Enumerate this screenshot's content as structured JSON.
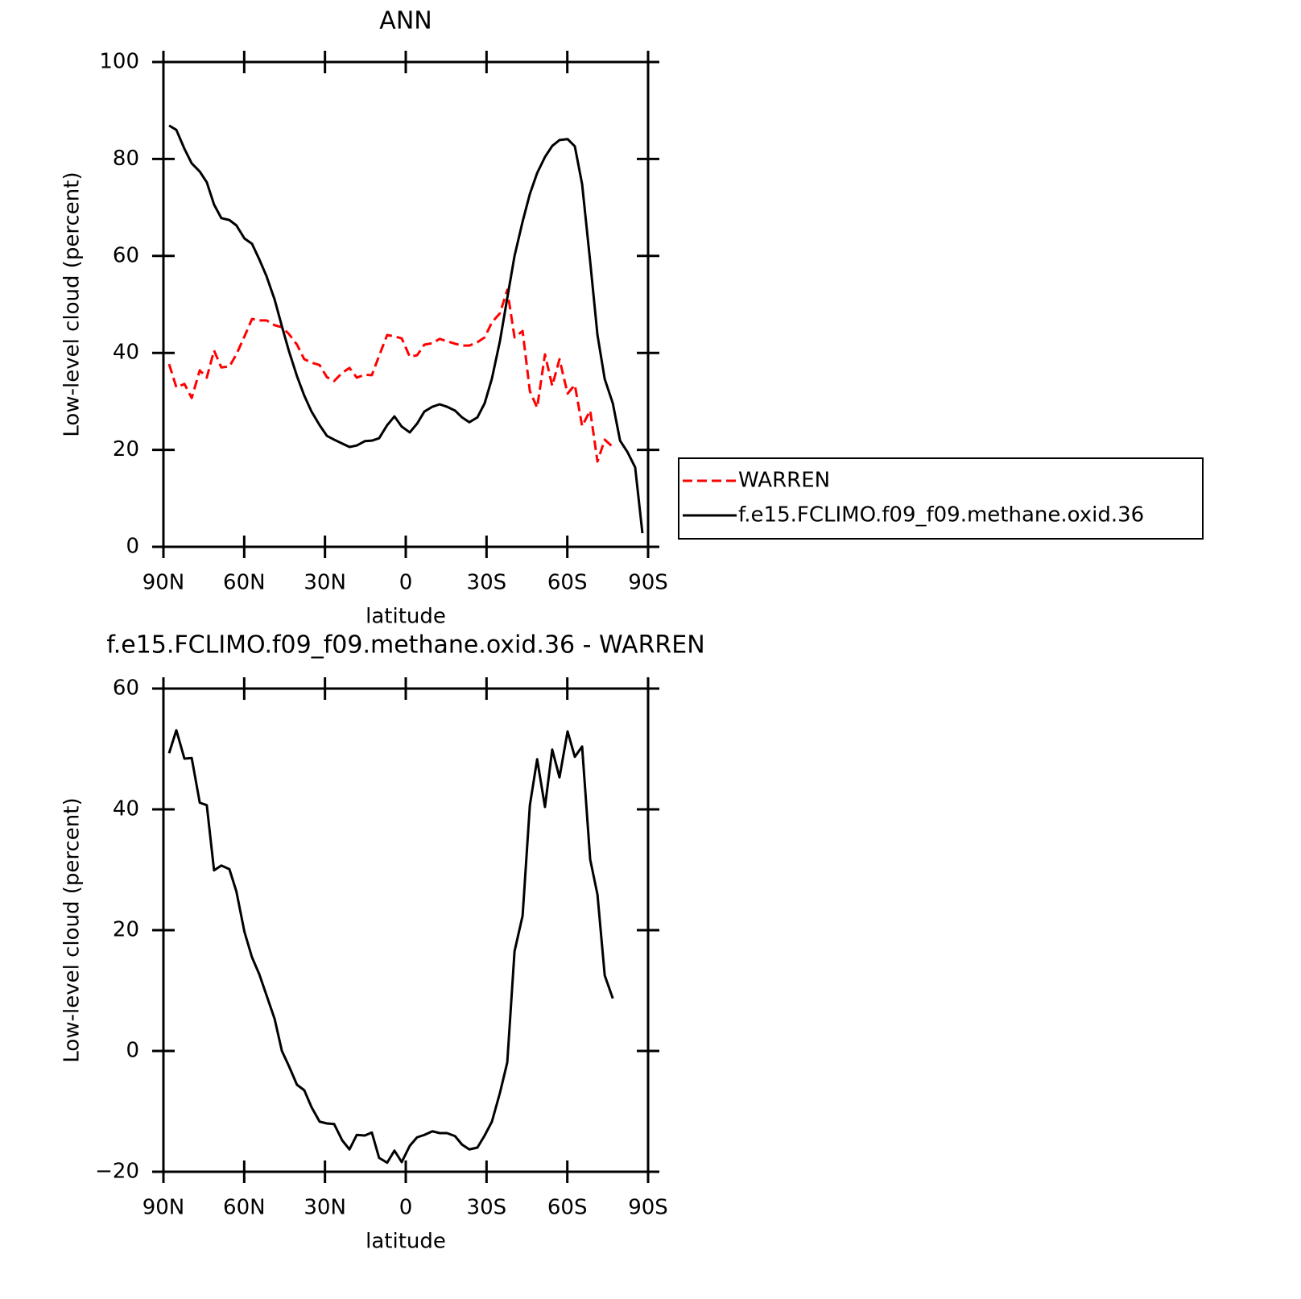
{
  "chart_data": [
    {
      "type": "line",
      "title": "ANN",
      "xlabel": "latitude",
      "ylabel": "Low-level cloud (percent)",
      "x": [
        87.9,
        85.2,
        82.2,
        79.5,
        76.5,
        73.9,
        71.2,
        68.5,
        65.5,
        62.9,
        59.9,
        57.1,
        54.4,
        51.7,
        48.7,
        46.0,
        43.4,
        40.4,
        37.7,
        35.0,
        32.0,
        29.3,
        26.6,
        23.6,
        20.9,
        18.2,
        15.2,
        12.6,
        9.9,
        6.9,
        4.2,
        1.5,
        -1.5,
        -4.2,
        -6.9,
        -9.9,
        -12.6,
        -15.3,
        -18.3,
        -20.9,
        -23.6,
        -26.6,
        -29.3,
        -32.0,
        -35.0,
        -37.7,
        -40.4,
        -43.4,
        -46.1,
        -48.8,
        -51.7,
        -54.4,
        -57.1,
        -60.1,
        -62.8,
        -65.5,
        -68.5,
        -71.2,
        -73.9,
        -76.9,
        -79.6,
        -82.3,
        -85.2,
        -87.9
      ],
      "xlim": [
        90,
        -90
      ],
      "xticks": [
        {
          "value": 90,
          "label": "90N"
        },
        {
          "value": 60,
          "label": "60N"
        },
        {
          "value": 30,
          "label": "30N"
        },
        0,
        {
          "value": -30,
          "label": "30S"
        },
        {
          "value": -60,
          "label": "60S"
        },
        {
          "value": -90,
          "label": "90S"
        }
      ],
      "ylim": [
        0,
        100
      ],
      "yticks": [
        0,
        20,
        40,
        60,
        80,
        100
      ],
      "legend": "right",
      "series": [
        {
          "name": "WARREN",
          "color": "#ff0000",
          "linestyle": "dashed",
          "values": [
            37.7,
            32.9,
            33.6,
            30.7,
            36.4,
            34.9,
            40.5,
            37.0,
            37.2,
            39.7,
            43.4,
            47.0,
            46.7,
            46.7,
            45.7,
            45.3,
            43.9,
            41.7,
            38.7,
            38.0,
            37.5,
            35.0,
            34.2,
            35.9,
            36.9,
            34.9,
            35.5,
            35.4,
            39.4,
            43.7,
            43.4,
            43.0,
            39.2,
            39.5,
            41.7,
            42.0,
            42.9,
            42.4,
            41.9,
            41.5,
            41.5,
            42.2,
            43.2,
            46.3,
            48.2,
            53.0,
            43.2,
            44.5,
            32.1,
            28.7,
            39.7,
            33.2,
            38.7,
            31.6,
            33.4,
            24.9,
            28.1,
            17.6,
            22.1,
            20.6,
            null,
            null,
            null,
            null
          ]
        },
        {
          "name": "f.e15.FCLIMO.f09_f09.methane.oxid.36",
          "color": "#000000",
          "linestyle": "solid",
          "values": [
            86.9,
            86.0,
            82.1,
            79.1,
            77.4,
            75.2,
            70.6,
            67.8,
            67.4,
            66.3,
            63.6,
            62.5,
            59.3,
            55.8,
            51.0,
            45.5,
            40.4,
            35.2,
            31.2,
            27.9,
            25.1,
            22.9,
            22.1,
            21.3,
            20.6,
            20.9,
            21.8,
            21.9,
            22.4,
            25.1,
            26.9,
            24.8,
            23.6,
            25.4,
            27.9,
            28.9,
            29.4,
            28.9,
            28.1,
            26.7,
            25.7,
            26.7,
            29.6,
            34.7,
            42.5,
            51.3,
            60.0,
            67.1,
            72.8,
            77.1,
            80.4,
            82.7,
            83.9,
            84.1,
            82.6,
            74.8,
            58.8,
            43.7,
            34.6,
            29.6,
            21.9,
            19.6,
            16.4,
            2.8
          ]
        }
      ]
    },
    {
      "type": "line",
      "title": "f.e15.FCLIMO.f09_f09.methane.oxid.36 - WARREN",
      "xlabel": "latitude",
      "ylabel": "Low-level cloud (percent)",
      "x": [
        87.9,
        85.2,
        82.2,
        79.5,
        76.5,
        73.9,
        71.2,
        68.5,
        65.5,
        62.9,
        59.9,
        57.1,
        54.4,
        51.7,
        48.7,
        46.0,
        43.4,
        40.4,
        37.7,
        35.0,
        32.0,
        29.3,
        26.6,
        23.6,
        20.9,
        18.2,
        15.2,
        12.6,
        9.9,
        6.9,
        4.2,
        1.5,
        -1.5,
        -4.2,
        -6.9,
        -9.9,
        -12.6,
        -15.3,
        -18.3,
        -20.9,
        -23.6,
        -26.6,
        -29.3,
        -32.0,
        -35.0,
        -37.7,
        -40.4,
        -43.4,
        -46.1,
        -48.8,
        -51.7,
        -54.4,
        -57.1,
        -60.1,
        -62.8,
        -65.5,
        -68.5,
        -71.2,
        -73.9,
        -76.9
      ],
      "xlim": [
        90,
        -90
      ],
      "xticks": [
        {
          "value": 90,
          "label": "90N"
        },
        {
          "value": 60,
          "label": "60N"
        },
        {
          "value": 30,
          "label": "30N"
        },
        0,
        {
          "value": -30,
          "label": "30S"
        },
        {
          "value": -60,
          "label": "60S"
        },
        {
          "value": -90,
          "label": "90S"
        }
      ],
      "ylim": [
        -20,
        60
      ],
      "yticks": [
        {
          "value": -20,
          "label": "−20"
        },
        0,
        20,
        40,
        60
      ],
      "color": "#000000",
      "values": [
        49.3,
        53.1,
        48.4,
        48.5,
        41.1,
        40.7,
        29.9,
        30.7,
        30.1,
        26.4,
        19.7,
        15.5,
        12.7,
        9.2,
        5.3,
        0.0,
        -2.5,
        -5.6,
        -6.5,
        -9.3,
        -11.7,
        -12.0,
        -12.1,
        -14.8,
        -16.3,
        -13.9,
        -14.0,
        -13.5,
        -17.7,
        -18.5,
        -16.5,
        -18.4,
        -15.7,
        -14.3,
        -13.9,
        -13.3,
        -13.6,
        -13.6,
        -14.1,
        -15.5,
        -16.3,
        -16.0,
        -14.0,
        -11.7,
        -6.9,
        -1.9,
        16.5,
        22.4,
        40.7,
        48.3,
        40.4,
        49.9,
        45.3,
        52.9,
        48.7,
        50.4,
        31.7,
        25.9,
        12.5,
        8.7
      ]
    }
  ]
}
